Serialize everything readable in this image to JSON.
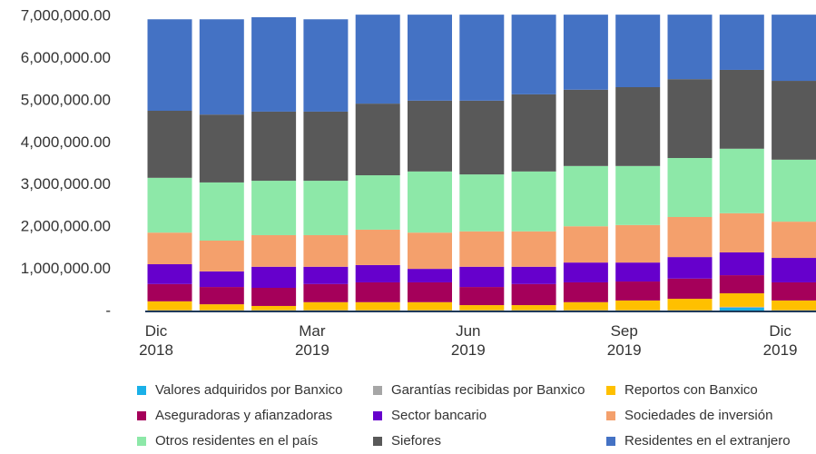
{
  "chart_data": {
    "type": "stacked_bar",
    "categories": [
      "Dic 2018",
      null,
      null,
      "Mar 2019",
      null,
      null,
      "Jun 2019",
      null,
      null,
      "Sep 2019",
      null,
      null,
      "Dic 2019"
    ],
    "ylim": [
      0,
      7000000
    ],
    "yticks": [
      {
        "value": 0,
        "label": "-"
      },
      {
        "value": 1000000,
        "label": "1,000,000.00"
      },
      {
        "value": 2000000,
        "label": "2,000,000.00"
      },
      {
        "value": 3000000,
        "label": "3,000,000.00"
      },
      {
        "value": 4000000,
        "label": "4,000,000.00"
      },
      {
        "value": 5000000,
        "label": "5,000,000.00"
      },
      {
        "value": 6000000,
        "label": "6,000,000.00"
      },
      {
        "value": 7000000,
        "label": "7,000,000.00"
      }
    ],
    "grid": false,
    "legend": "bottom",
    "series": [
      {
        "name": "Valores adquiridos por Banxico",
        "color": "#1ab0e8",
        "values": [
          0,
          0,
          0,
          0,
          0,
          0,
          0,
          0,
          0,
          0,
          0,
          90000,
          10000
        ]
      },
      {
        "name": "Garantías recibidas por Banxico",
        "color": "#a6a6a6",
        "values": [
          30000,
          30000,
          30000,
          30000,
          30000,
          30000,
          30000,
          30000,
          30000,
          30000,
          30000,
          20000,
          20000
        ]
      },
      {
        "name": "Reportos con Banxico",
        "color": "#ffc000",
        "values": [
          210000,
          140000,
          100000,
          190000,
          190000,
          190000,
          120000,
          120000,
          190000,
          230000,
          270000,
          320000,
          230000
        ]
      },
      {
        "name": "Aseguradoras y afianzadoras",
        "color": "#a5005a",
        "values": [
          410000,
          410000,
          430000,
          430000,
          470000,
          470000,
          430000,
          500000,
          470000,
          450000,
          480000,
          430000,
          430000
        ]
      },
      {
        "name": "Sector bancario",
        "color": "#6600cc",
        "values": [
          470000,
          370000,
          500000,
          410000,
          410000,
          320000,
          480000,
          410000,
          470000,
          450000,
          510000,
          540000,
          580000
        ]
      },
      {
        "name": "Sociedades de inversión",
        "color": "#f4a06c",
        "values": [
          750000,
          730000,
          750000,
          750000,
          840000,
          860000,
          840000,
          840000,
          860000,
          890000,
          950000,
          930000,
          860000
        ]
      },
      {
        "name": "Otros residentes en el país",
        "color": "#8de8a8",
        "values": [
          1300000,
          1380000,
          1290000,
          1290000,
          1290000,
          1450000,
          1350000,
          1420000,
          1430000,
          1400000,
          1400000,
          1530000,
          1470000
        ]
      },
      {
        "name": "Siefores",
        "color": "#595959",
        "values": [
          1590000,
          1610000,
          1640000,
          1640000,
          1700000,
          1680000,
          1750000,
          1830000,
          1810000,
          1870000,
          1870000,
          1870000,
          1870000
        ]
      },
      {
        "name": "Residentes en el extranjero",
        "color": "#4472c4",
        "values": [
          2170000,
          2260000,
          2240000,
          2190000,
          2110000,
          2040000,
          2040000,
          1890000,
          1780000,
          1720000,
          1530000,
          1310000,
          1570000
        ]
      }
    ]
  }
}
